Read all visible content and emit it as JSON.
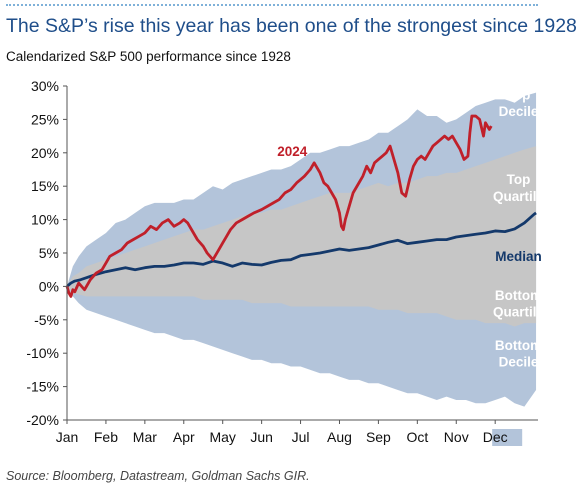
{
  "header": {
    "title": "The S&P’s rise this year has been one of the strongest since 1928",
    "subtitle": "Calendarized S&P 500 performance since 1928"
  },
  "source": "Source: Bloomberg, Datastream, Goldman Sachs GIR.",
  "colors": {
    "decile_band": "#b3c4da",
    "quartile_band": "#c6c6c6",
    "line_2024": "#c0202a",
    "median": "#14396b",
    "band_label": "#ffffff",
    "title": "#1f4e8a",
    "month_highlight": "#b3c4da"
  },
  "chart_data": {
    "type": "area",
    "x_unit": "months elapsed since Jan 1",
    "ylim": [
      -20,
      30
    ],
    "yticks": [
      -20,
      -15,
      -10,
      -5,
      0,
      5,
      10,
      15,
      20,
      25,
      30
    ],
    "ytick_labels": [
      "-20%",
      "-15%",
      "-10%",
      "-5%",
      "0%",
      "5%",
      "10%",
      "15%",
      "20%",
      "25%",
      "30%"
    ],
    "xlim": [
      0,
      12.1
    ],
    "months": [
      "Jan",
      "Feb",
      "Mar",
      "Apr",
      "May",
      "Jun",
      "Jul",
      "Aug",
      "Sep",
      "Oct",
      "Nov",
      "Dec"
    ],
    "highlighted_month": "Dec",
    "grid": false,
    "legend": "labels placed inside plot",
    "series": [
      {
        "name": "Top Decile",
        "role": "upper edge of outer band",
        "x": [
          0,
          0.15,
          0.3,
          0.5,
          0.75,
          1,
          1.25,
          1.5,
          1.75,
          2,
          2.25,
          2.5,
          2.75,
          3,
          3.25,
          3.5,
          3.75,
          4,
          4.25,
          4.5,
          4.75,
          5,
          5.25,
          5.5,
          5.75,
          6,
          6.25,
          6.5,
          6.75,
          7,
          7.25,
          7.5,
          7.75,
          8,
          8.25,
          8.5,
          8.75,
          9,
          9.25,
          9.5,
          9.75,
          10,
          10.25,
          10.5,
          10.75,
          11,
          11.25,
          11.5,
          11.75,
          12.05
        ],
        "values": [
          0,
          3,
          4.5,
          6,
          7,
          8,
          9.5,
          10,
          11,
          12,
          12.5,
          12.5,
          12.5,
          13,
          13,
          14,
          15,
          14.5,
          15.5,
          16,
          16.5,
          17,
          17.5,
          17.5,
          18,
          19,
          20,
          20,
          20.5,
          21,
          21,
          21.5,
          22,
          23,
          23,
          24,
          25,
          26.5,
          25.5,
          25.5,
          24.5,
          25,
          26,
          27,
          27.5,
          28,
          28,
          27.5,
          28.5,
          29
        ]
      },
      {
        "name": "Top Quartile",
        "role": "upper edge of inner band",
        "x": [
          0,
          0.15,
          0.3,
          0.5,
          0.75,
          1,
          1.25,
          1.5,
          1.75,
          2,
          2.25,
          2.5,
          2.75,
          3,
          3.25,
          3.5,
          3.75,
          4,
          4.25,
          4.5,
          4.75,
          5,
          5.25,
          5.5,
          5.75,
          6,
          6.25,
          6.5,
          6.75,
          7,
          7.25,
          7.5,
          7.75,
          8,
          8.25,
          8.5,
          8.75,
          9,
          9.25,
          9.5,
          9.75,
          10,
          10.25,
          10.5,
          10.75,
          11,
          11.25,
          11.5,
          11.75,
          12.05
        ],
        "values": [
          0,
          1.5,
          2,
          3,
          3.5,
          4,
          4.5,
          5,
          5.5,
          6,
          6.5,
          7,
          7.5,
          8,
          8.5,
          8.5,
          9,
          9.5,
          10,
          10.5,
          11,
          11,
          11.5,
          11.5,
          12,
          12.5,
          13,
          13.5,
          14,
          14,
          14,
          14.5,
          15,
          15.5,
          15,
          15.5,
          15.5,
          16,
          16.5,
          16.5,
          17,
          17,
          17.5,
          18,
          18.5,
          19,
          19.5,
          20,
          20.5,
          21
        ]
      },
      {
        "name": "Bottom Quartile",
        "role": "lower edge of inner band",
        "x": [
          0,
          0.15,
          0.3,
          0.5,
          0.75,
          1,
          1.25,
          1.5,
          1.75,
          2,
          2.25,
          2.5,
          2.75,
          3,
          3.25,
          3.5,
          3.75,
          4,
          4.25,
          4.5,
          4.75,
          5,
          5.25,
          5.5,
          5.75,
          6,
          6.25,
          6.5,
          6.75,
          7,
          7.25,
          7.5,
          7.75,
          8,
          8.25,
          8.5,
          8.75,
          9,
          9.25,
          9.5,
          9.75,
          10,
          10.25,
          10.5,
          10.75,
          11,
          11.25,
          11.5,
          11.75,
          12.05
        ],
        "values": [
          0,
          -1,
          -1.2,
          -1.5,
          -1.5,
          -1.5,
          -1.5,
          -1.5,
          -1.5,
          -1.5,
          -1.5,
          -1.5,
          -1.5,
          -1.5,
          -1.5,
          -2,
          -2,
          -2,
          -2,
          -2,
          -2.5,
          -2.5,
          -2.5,
          -2.5,
          -3,
          -3,
          -3,
          -3,
          -3,
          -3,
          -3,
          -3,
          -3,
          -3.5,
          -3.5,
          -3.5,
          -4,
          -4,
          -4,
          -4,
          -4.5,
          -5,
          -5,
          -5,
          -5.5,
          -5.5,
          -5.5,
          -6,
          -5.5,
          -5.5
        ]
      },
      {
        "name": "Bottom Decile",
        "role": "lower edge of outer band",
        "x": [
          0,
          0.15,
          0.3,
          0.5,
          0.75,
          1,
          1.25,
          1.5,
          1.75,
          2,
          2.25,
          2.5,
          2.75,
          3,
          3.25,
          3.5,
          3.75,
          4,
          4.25,
          4.5,
          4.75,
          5,
          5.25,
          5.5,
          5.75,
          6,
          6.25,
          6.5,
          6.75,
          7,
          7.25,
          7.5,
          7.75,
          8,
          8.25,
          8.5,
          8.75,
          9,
          9.25,
          9.5,
          9.75,
          10,
          10.25,
          10.5,
          10.75,
          11,
          11.25,
          11.5,
          11.75,
          12.05
        ],
        "values": [
          0,
          -1.5,
          -2.5,
          -3.5,
          -4,
          -4.5,
          -5,
          -5.5,
          -6,
          -6.5,
          -7,
          -7,
          -7.5,
          -8,
          -8,
          -8.5,
          -9,
          -9.5,
          -10,
          -10.5,
          -11,
          -11,
          -11.5,
          -11.5,
          -12,
          -12,
          -12.5,
          -13,
          -13,
          -13.5,
          -14,
          -14,
          -14.5,
          -14.5,
          -15,
          -15.5,
          -16,
          -16,
          -16.5,
          -17,
          -16.5,
          -17,
          -17,
          -17.5,
          -17.5,
          -17,
          -16.5,
          -17.5,
          -18,
          -15.5
        ]
      },
      {
        "name": "2024",
        "x": [
          0,
          0.05,
          0.1,
          0.15,
          0.2,
          0.3,
          0.45,
          0.6,
          0.75,
          0.9,
          1,
          1.1,
          1.25,
          1.4,
          1.55,
          1.7,
          1.85,
          2,
          2.15,
          2.3,
          2.45,
          2.6,
          2.75,
          2.9,
          3,
          3.1,
          3.2,
          3.35,
          3.5,
          3.6,
          3.75,
          3.9,
          4,
          4.1,
          4.2,
          4.35,
          4.5,
          4.65,
          4.8,
          5,
          5.15,
          5.3,
          5.45,
          5.6,
          5.75,
          5.9,
          6,
          6.1,
          6.25,
          6.35,
          6.5,
          6.6,
          6.7,
          6.8,
          6.9,
          7,
          7.05,
          7.1,
          7.15,
          7.25,
          7.35,
          7.5,
          7.6,
          7.7,
          7.8,
          7.9,
          8,
          8.1,
          8.2,
          8.3,
          8.4,
          8.5,
          8.6,
          8.7,
          8.8,
          8.9,
          9,
          9.1,
          9.2,
          9.3,
          9.4,
          9.5,
          9.6,
          9.7,
          9.8,
          9.9,
          10,
          10.1,
          10.2,
          10.3,
          10.35,
          10.4,
          10.5,
          10.6,
          10.7,
          10.75,
          10.8,
          10.85,
          10.9
        ],
        "values": [
          0,
          -1,
          -1.5,
          -0.5,
          -0.8,
          0.5,
          -0.5,
          1,
          2,
          2.5,
          3.5,
          4.5,
          5,
          5.5,
          6.5,
          7,
          7.5,
          8,
          9,
          8.5,
          9.5,
          10,
          9,
          9.5,
          10,
          9.5,
          8.5,
          7,
          6,
          5,
          4,
          5.5,
          6.5,
          7.5,
          8.5,
          9.5,
          10,
          10.5,
          11,
          11.5,
          12,
          12.5,
          13,
          14,
          14.5,
          15.5,
          16,
          16.5,
          17.5,
          18.5,
          17,
          15.5,
          15,
          14,
          13,
          11,
          9,
          8.5,
          10,
          12,
          14,
          15.5,
          16.5,
          18,
          17,
          18.5,
          19,
          19.5,
          20,
          21,
          19,
          17,
          14,
          13.5,
          16,
          18,
          19,
          19.5,
          19,
          20,
          21,
          21.5,
          22,
          22.5,
          22,
          22.5,
          21.5,
          20.5,
          19,
          19.5,
          23,
          25.5,
          25.5,
          25,
          22.5,
          24.5,
          24,
          23.5,
          24
        ]
      },
      {
        "name": "Median",
        "x": [
          0,
          0.1,
          0.2,
          0.35,
          0.5,
          0.75,
          1,
          1.25,
          1.5,
          1.75,
          2,
          2.25,
          2.5,
          2.75,
          3,
          3.25,
          3.5,
          3.75,
          4,
          4.25,
          4.5,
          4.75,
          5,
          5.25,
          5.5,
          5.75,
          6,
          6.25,
          6.5,
          6.75,
          7,
          7.25,
          7.5,
          7.75,
          8,
          8.25,
          8.5,
          8.75,
          9,
          9.25,
          9.5,
          9.75,
          10,
          10.25,
          10.5,
          10.75,
          11,
          11.25,
          11.5,
          11.75,
          12,
          12.05
        ],
        "values": [
          0,
          0.5,
          0.8,
          1,
          1.3,
          1.8,
          2.2,
          2.5,
          2.8,
          2.5,
          2.8,
          3,
          3,
          3.2,
          3.5,
          3.5,
          3.3,
          3.8,
          3.5,
          3,
          3.5,
          3.3,
          3.2,
          3.6,
          3.9,
          4,
          4.6,
          4.8,
          5,
          5.3,
          5.6,
          5.4,
          5.6,
          5.8,
          6.2,
          6.6,
          6.9,
          6.4,
          6.6,
          6.8,
          7,
          7,
          7.4,
          7.6,
          7.8,
          8,
          8.3,
          8.2,
          8.6,
          9.5,
          10.8,
          11
        ]
      }
    ],
    "annotations": [
      {
        "text": "2024",
        "x": 5.4,
        "y": 19.5,
        "color": "#c0202a",
        "weight": "bold"
      },
      {
        "text": "Top",
        "x": 11.6,
        "y": 28.0,
        "color": "#ffffff",
        "weight": "bold"
      },
      {
        "text": "Decile",
        "x": 11.6,
        "y": 25.5,
        "color": "#ffffff",
        "weight": "bold"
      },
      {
        "text": "Top",
        "x": 11.6,
        "y": 15.3,
        "color": "#ffffff",
        "weight": "bold"
      },
      {
        "text": "Quartile",
        "x": 11.6,
        "y": 12.8,
        "color": "#ffffff",
        "weight": "bold"
      },
      {
        "text": "Median",
        "x": 11.6,
        "y": 3.8,
        "color": "#14396b",
        "weight": "bold"
      },
      {
        "text": "Bottom",
        "x": 11.6,
        "y": -2.0,
        "color": "#ffffff",
        "weight": "bold"
      },
      {
        "text": "Quartile",
        "x": 11.6,
        "y": -4.5,
        "color": "#ffffff",
        "weight": "bold"
      },
      {
        "text": "Bottom",
        "x": 11.6,
        "y": -9.5,
        "color": "#ffffff",
        "weight": "bold"
      },
      {
        "text": "Decile",
        "x": 11.6,
        "y": -12.0,
        "color": "#ffffff",
        "weight": "bold"
      }
    ]
  }
}
